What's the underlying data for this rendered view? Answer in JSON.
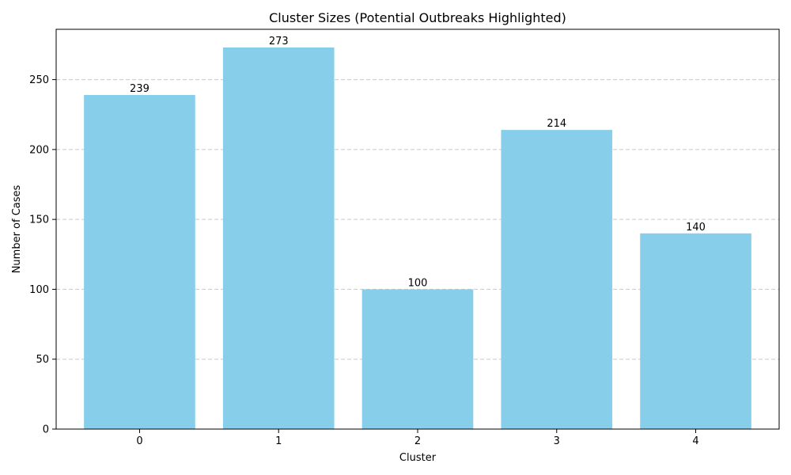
{
  "chart_data": {
    "type": "bar",
    "title": "Cluster Sizes (Potential Outbreaks Highlighted)",
    "xlabel": "Cluster",
    "ylabel": "Number of Cases",
    "categories": [
      "0",
      "1",
      "2",
      "3",
      "4"
    ],
    "values": [
      239,
      273,
      100,
      214,
      140
    ],
    "value_labels": [
      "239",
      "273",
      "100",
      "214",
      "140"
    ],
    "ylim": [
      0,
      286
    ],
    "yticks": [
      0,
      50,
      100,
      150,
      200,
      250
    ],
    "ytick_labels": [
      "0",
      "50",
      "100",
      "150",
      "200",
      "250"
    ],
    "grid": "y-dashed",
    "legend": "none",
    "colors": {
      "bar": "#87ceeb",
      "grid": "#c8c8c8",
      "axis": "#000000"
    }
  }
}
